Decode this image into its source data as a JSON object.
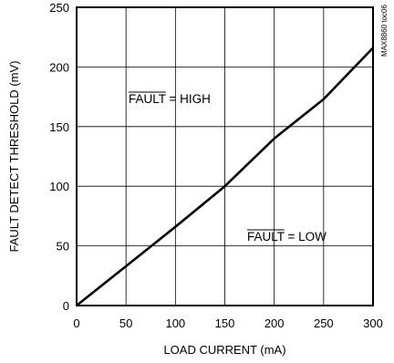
{
  "chart_data": {
    "type": "line",
    "title": "",
    "xlabel": "LOAD CURRENT (mA)",
    "ylabel": "FAULT DETECT THRESHOLD (mV)",
    "xlim": [
      0,
      300
    ],
    "ylim": [
      0,
      250
    ],
    "x_ticks": [
      0,
      50,
      100,
      150,
      200,
      250,
      300
    ],
    "y_ticks": [
      0,
      50,
      100,
      150,
      200,
      250
    ],
    "grid": true,
    "series": [
      {
        "x": [
          0,
          50,
          100,
          150,
          200,
          250,
          300
        ],
        "y": [
          0,
          33,
          66,
          100,
          140,
          173,
          216
        ]
      }
    ],
    "annotations": [
      {
        "prefix": "FAULT",
        "suffix": " = HIGH",
        "overline": true
      },
      {
        "prefix": "FAULT",
        "suffix": " = LOW",
        "overline": true
      }
    ],
    "part_code": "MAX8860 toc06"
  }
}
